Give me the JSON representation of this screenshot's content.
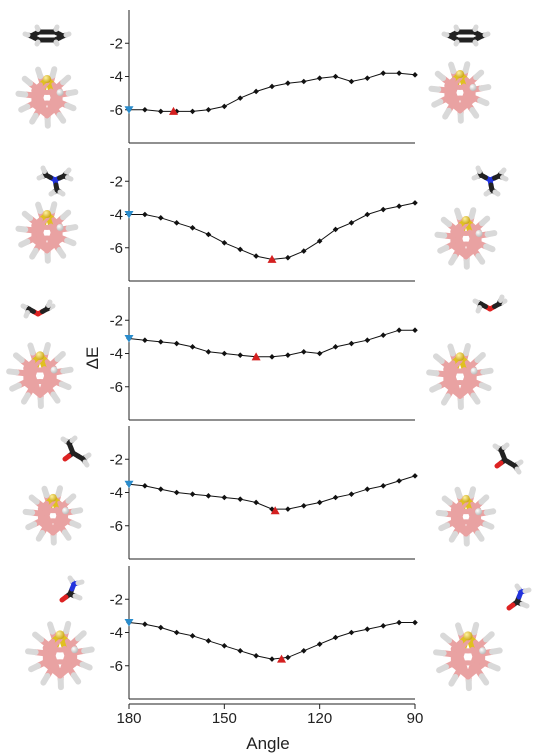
{
  "colors": {
    "line": "#111111",
    "marker": "#111111",
    "min_marker": "#d42020",
    "start_marker": "#2a8ccc",
    "atom_boron": "#efb0b0",
    "atom_sulfur": "#e8c82a",
    "atom_hydrogen": "#e2e2e2",
    "atom_carbon": "#1e1e1e",
    "atom_nitrogen": "#2233dd",
    "atom_oxygen": "#dd2222"
  },
  "icons": {
    "left": [
      "benzene-molecule-icon",
      "trimethylamine-molecule-icon",
      "dimethyl-ether-molecule-icon",
      "acetone-molecule-icon",
      "formamide-molecule-icon"
    ],
    "right": [
      "benzene-molecule-icon",
      "trimethylamine-molecule-icon",
      "dimethyl-ether-molecule-icon",
      "acetone-molecule-icon",
      "formamide-molecule-icon"
    ],
    "cluster": "thiaborane-cluster-icon"
  },
  "chart_data": {
    "type": "line",
    "xlabel": "Angle",
    "ylabel": "ΔE",
    "x_ticks": [
      "180",
      "150",
      "120",
      "90"
    ],
    "xlim": [
      180,
      90
    ],
    "x_reversed": true,
    "ylim": [
      -8,
      0
    ],
    "y_ticks": [
      "-2",
      "-4",
      "-6"
    ],
    "panels": [
      {
        "name": "",
        "x": [
          180,
          175,
          170,
          165,
          160,
          155,
          150,
          145,
          140,
          135,
          130,
          125,
          120,
          115,
          110,
          105,
          100,
          95,
          90
        ],
        "y": [
          -6.0,
          -6.0,
          -6.1,
          -6.1,
          -6.1,
          -6.0,
          -5.8,
          -5.3,
          -4.9,
          -4.6,
          -4.4,
          -4.3,
          -4.1,
          -4.0,
          -4.3,
          -4.1,
          -3.8,
          -3.8,
          -3.9
        ],
        "min_marker": {
          "x": 166,
          "y": -6.1
        },
        "start_marker": {
          "x": 180,
          "y": -6.0
        }
      },
      {
        "name": "",
        "x": [
          180,
          175,
          170,
          165,
          160,
          155,
          150,
          145,
          140,
          135,
          130,
          125,
          120,
          115,
          110,
          105,
          100,
          95,
          90
        ],
        "y": [
          -4.0,
          -4.0,
          -4.2,
          -4.5,
          -4.8,
          -5.2,
          -5.7,
          -6.1,
          -6.5,
          -6.7,
          -6.6,
          -6.2,
          -5.6,
          -4.9,
          -4.5,
          -4.0,
          -3.7,
          -3.5,
          -3.3
        ],
        "min_marker": {
          "x": 135,
          "y": -6.7
        },
        "start_marker": {
          "x": 180,
          "y": -4.0
        }
      },
      {
        "name": "",
        "x": [
          180,
          175,
          170,
          165,
          160,
          155,
          150,
          145,
          140,
          135,
          130,
          125,
          120,
          115,
          110,
          105,
          100,
          95,
          90
        ],
        "y": [
          -3.1,
          -3.2,
          -3.3,
          -3.4,
          -3.6,
          -3.9,
          -4.0,
          -4.1,
          -4.2,
          -4.2,
          -4.1,
          -3.9,
          -4.0,
          -3.6,
          -3.4,
          -3.2,
          -2.9,
          -2.6,
          -2.6
        ],
        "min_marker": {
          "x": 140,
          "y": -4.2
        },
        "start_marker": {
          "x": 180,
          "y": -3.1
        }
      },
      {
        "name": "",
        "x": [
          180,
          175,
          170,
          165,
          160,
          155,
          150,
          145,
          140,
          135,
          130,
          125,
          120,
          115,
          110,
          105,
          100,
          95,
          90
        ],
        "y": [
          -3.5,
          -3.6,
          -3.8,
          -4.0,
          -4.1,
          -4.2,
          -4.3,
          -4.4,
          -4.6,
          -5.0,
          -5.0,
          -4.8,
          -4.6,
          -4.3,
          -4.1,
          -3.8,
          -3.6,
          -3.3,
          -3.0
        ],
        "min_marker": {
          "x": 134,
          "y": -5.1
        },
        "start_marker": {
          "x": 180,
          "y": -3.5
        }
      },
      {
        "name": "",
        "x": [
          180,
          175,
          170,
          165,
          160,
          155,
          150,
          145,
          140,
          135,
          130,
          125,
          120,
          115,
          110,
          105,
          100,
          95,
          90
        ],
        "y": [
          -3.4,
          -3.5,
          -3.7,
          -4.0,
          -4.2,
          -4.5,
          -4.8,
          -5.1,
          -5.4,
          -5.6,
          -5.5,
          -5.1,
          -4.7,
          -4.3,
          -4.0,
          -3.8,
          -3.6,
          -3.4,
          -3.4
        ],
        "min_marker": {
          "x": 132,
          "y": -5.6
        },
        "start_marker": {
          "x": 180,
          "y": -3.4
        }
      }
    ]
  }
}
